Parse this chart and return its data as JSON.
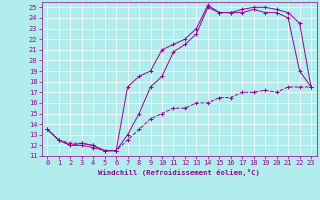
{
  "xlabel": "Windchill (Refroidissement éolien,°C)",
  "bg_color": "#b2eded",
  "line_color": "#990099",
  "grid_color": "#ffffff",
  "xlim": [
    -0.5,
    23.5
  ],
  "ylim": [
    11,
    25.5
  ],
  "xticks": [
    0,
    1,
    2,
    3,
    4,
    5,
    6,
    7,
    8,
    9,
    10,
    11,
    12,
    13,
    14,
    15,
    16,
    17,
    18,
    19,
    20,
    21,
    22,
    23
  ],
  "yticks": [
    11,
    12,
    13,
    14,
    15,
    16,
    17,
    18,
    19,
    20,
    21,
    22,
    23,
    24,
    25
  ],
  "line1_x": [
    0,
    1,
    2,
    3,
    4,
    5,
    6,
    7,
    8,
    9,
    10,
    11,
    12,
    13,
    14,
    15,
    16,
    17,
    18,
    19,
    20,
    21,
    22,
    23
  ],
  "line1_y": [
    13.5,
    12.5,
    12.0,
    12.0,
    11.8,
    11.5,
    11.5,
    13.0,
    15.0,
    17.5,
    18.5,
    20.8,
    21.5,
    22.5,
    25.0,
    24.5,
    24.5,
    24.5,
    24.8,
    24.5,
    24.5,
    24.0,
    19.0,
    17.5
  ],
  "line2_x": [
    0,
    1,
    2,
    3,
    4,
    5,
    6,
    7,
    8,
    9,
    10,
    11,
    12,
    13,
    14,
    15,
    16,
    17,
    18,
    19,
    20,
    21,
    22,
    23
  ],
  "line2_y": [
    13.5,
    12.5,
    12.0,
    12.2,
    12.0,
    11.5,
    11.5,
    17.5,
    18.5,
    19.0,
    21.0,
    21.5,
    22.0,
    23.0,
    25.2,
    24.5,
    24.5,
    24.8,
    25.0,
    25.0,
    24.8,
    24.5,
    23.5,
    17.5
  ],
  "line3_x": [
    0,
    1,
    2,
    3,
    4,
    5,
    6,
    7,
    8,
    9,
    10,
    11,
    12,
    13,
    14,
    15,
    16,
    17,
    18,
    19,
    20,
    21,
    22,
    23
  ],
  "line3_y": [
    13.5,
    12.5,
    12.2,
    12.2,
    12.0,
    11.5,
    11.5,
    12.5,
    13.5,
    14.5,
    15.0,
    15.5,
    15.5,
    16.0,
    16.0,
    16.5,
    16.5,
    17.0,
    17.0,
    17.2,
    17.0,
    17.5,
    17.5,
    17.5
  ],
  "tick_fontsize": 5.0,
  "xlabel_fontsize": 5.2,
  "linewidth": 0.7,
  "markersize": 2.5
}
